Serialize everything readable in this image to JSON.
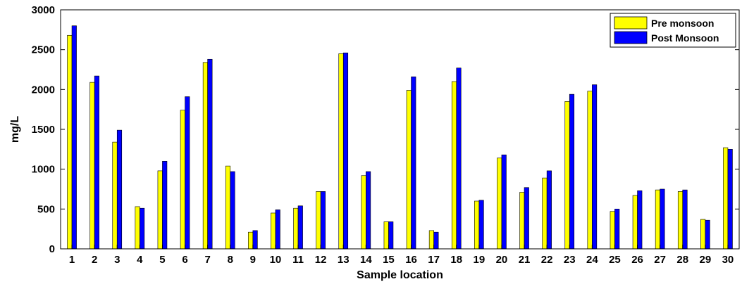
{
  "chart_data": {
    "type": "bar",
    "title": "",
    "xlabel": "Sample location",
    "ylabel": "mg/L",
    "ylim": [
      0,
      3000
    ],
    "yticks": [
      0,
      500,
      1000,
      1500,
      2000,
      2500,
      3000
    ],
    "grid": false,
    "legend_position": "top-right",
    "categories": [
      "1",
      "2",
      "3",
      "4",
      "5",
      "6",
      "7",
      "8",
      "9",
      "10",
      "11",
      "12",
      "13",
      "14",
      "15",
      "16",
      "17",
      "18",
      "19",
      "20",
      "21",
      "22",
      "23",
      "24",
      "25",
      "26",
      "27",
      "28",
      "29",
      "30"
    ],
    "series": [
      {
        "name": "Pre monsoon",
        "color": "#ffff00",
        "values": [
          2680,
          2090,
          1340,
          530,
          980,
          1740,
          2340,
          1040,
          210,
          450,
          510,
          720,
          2450,
          920,
          340,
          1990,
          230,
          2100,
          600,
          1140,
          710,
          890,
          1850,
          1980,
          470,
          670,
          740,
          720,
          370,
          1270
        ]
      },
      {
        "name": "Post Monsoon",
        "color": "#0000ff",
        "values": [
          2800,
          2170,
          1490,
          510,
          1100,
          1910,
          2380,
          970,
          230,
          490,
          540,
          720,
          2460,
          970,
          340,
          2160,
          210,
          2270,
          610,
          1180,
          770,
          980,
          1940,
          2060,
          500,
          730,
          750,
          740,
          360,
          1250
        ]
      }
    ]
  }
}
